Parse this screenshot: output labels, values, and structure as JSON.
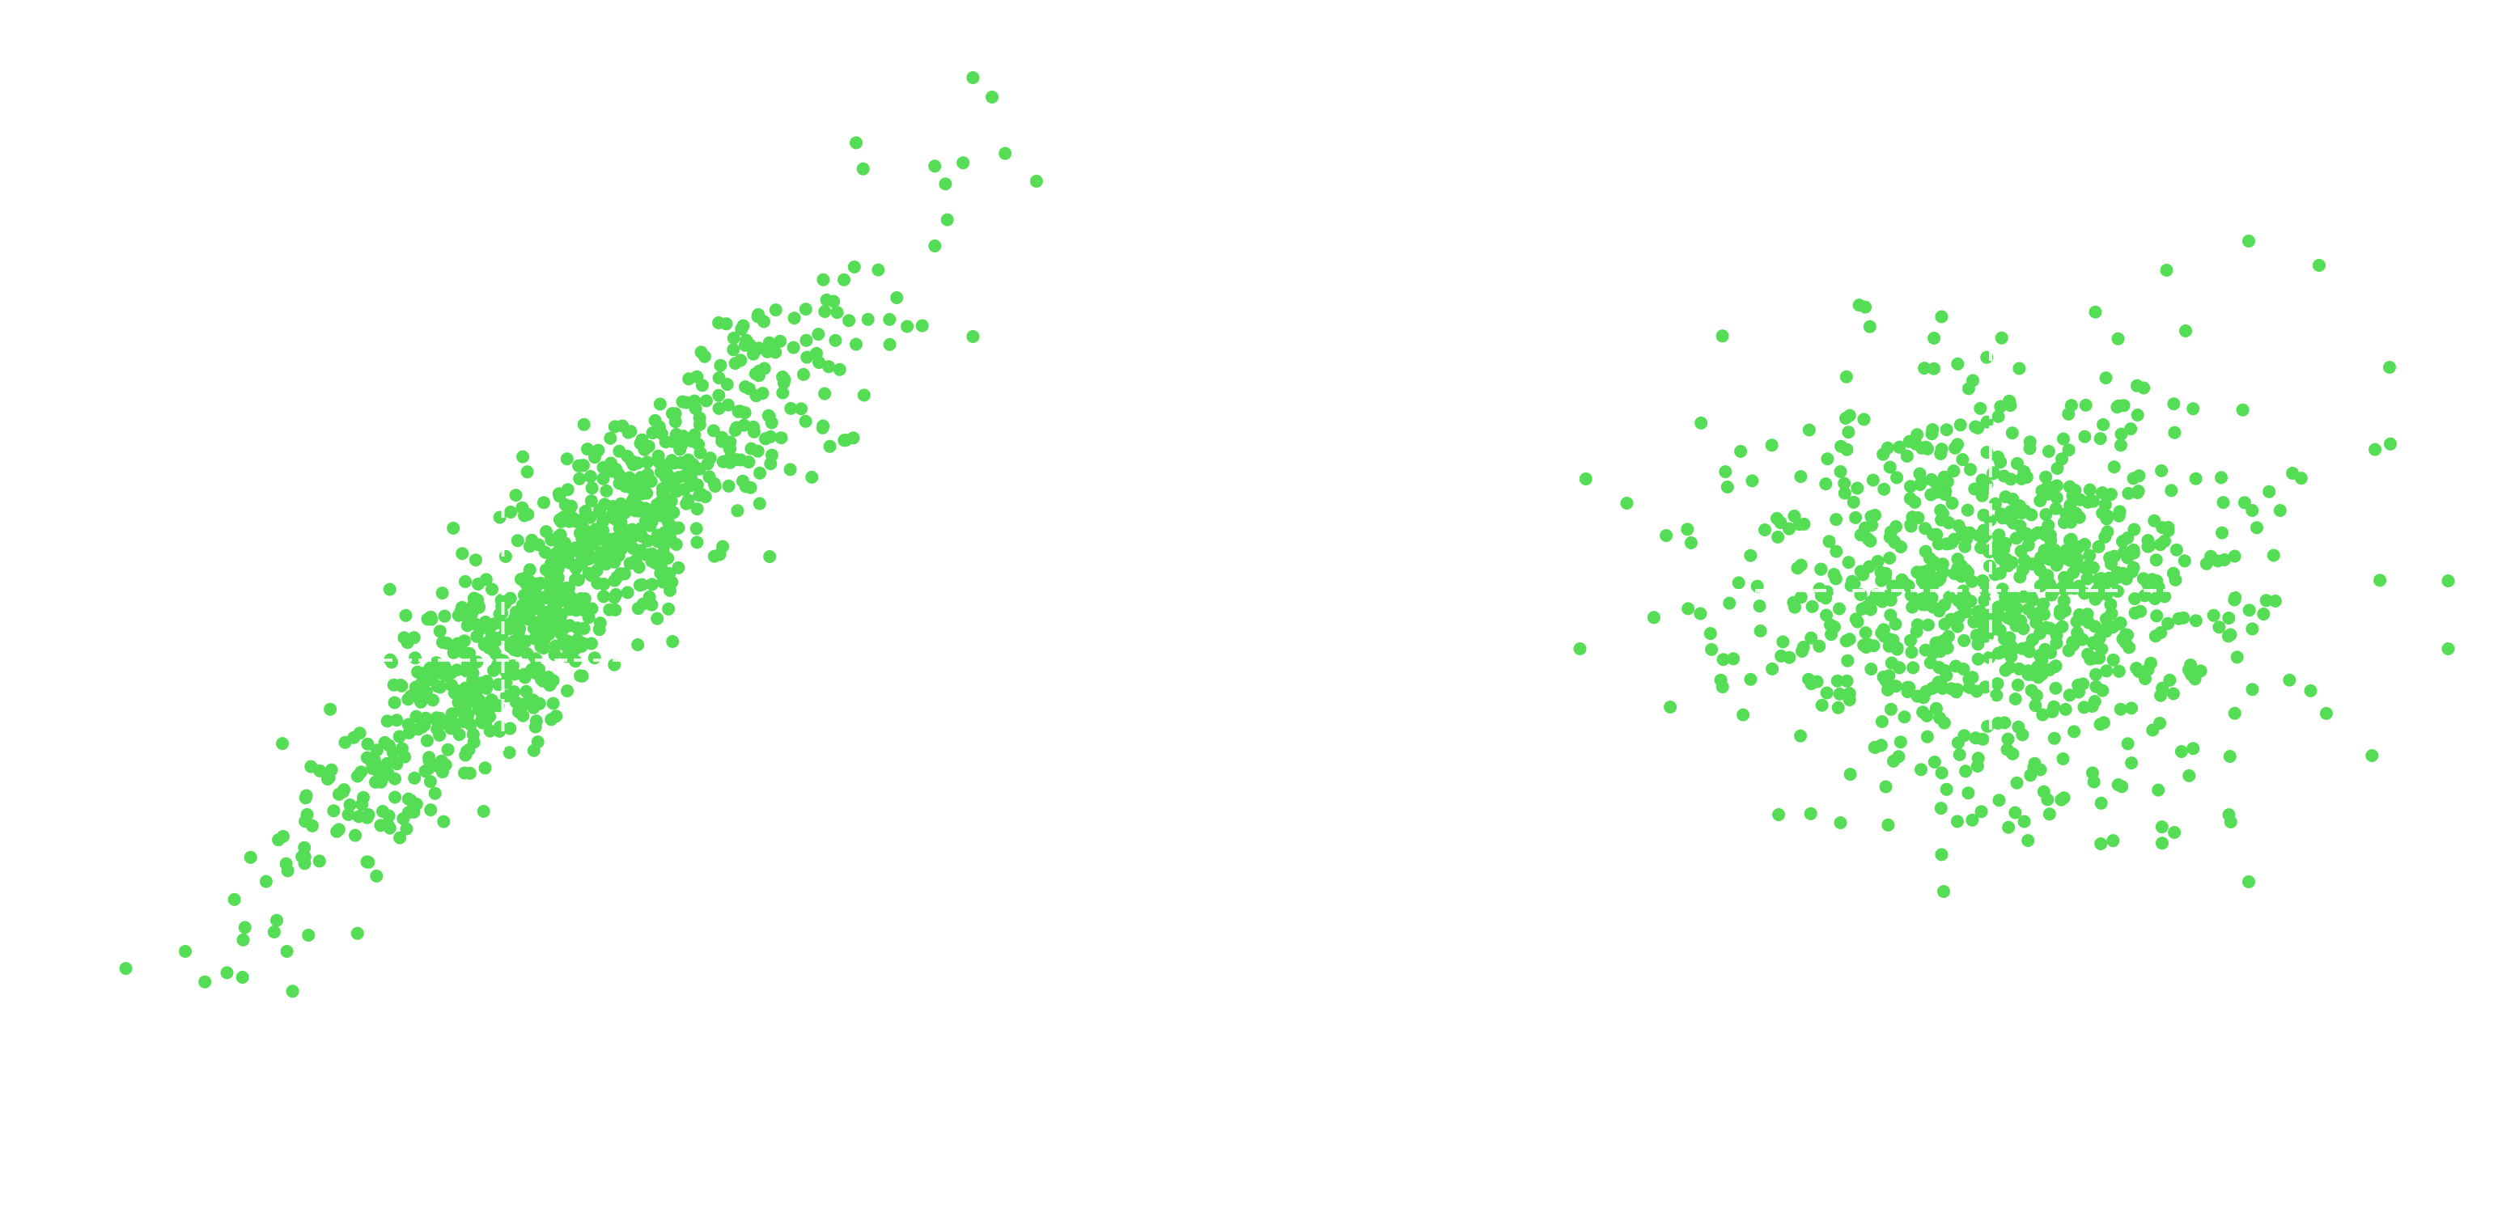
{
  "chart_data": [
    {
      "type": "scatter",
      "panel": "left",
      "title": "",
      "xlabel": "",
      "ylabel": "",
      "axes_visible": false,
      "grid": false,
      "xlim": [
        -4,
        4
      ],
      "ylim": [
        -4,
        4
      ],
      "n_points": 900,
      "generator": {
        "mean": [
          0,
          0
        ],
        "cov": [
          [
            1.0,
            0.9
          ],
          [
            0.9,
            1.0
          ]
        ],
        "seed": 11
      },
      "anchor_points": [
        [
          3.2,
          3.9
        ],
        [
          3.35,
          3.75
        ],
        [
          3.7,
          3.1
        ],
        [
          2.9,
          2.6
        ],
        [
          -3.0,
          -2.85
        ],
        [
          -2.55,
          -3.05
        ],
        [
          -2.2,
          -2.85
        ],
        [
          -2.3,
          -2.7
        ],
        [
          2.6,
          2.2
        ],
        [
          3.2,
          1.9
        ],
        [
          2.2,
          1.1
        ],
        [
          1.6,
          0.2
        ]
      ],
      "guide_lines": {
        "x": -0.5,
        "y": -0.6
      },
      "marker_color": "#55dd55",
      "series": [
        {
          "name": ""
        }
      ]
    },
    {
      "type": "scatter",
      "panel": "right",
      "title": "",
      "xlabel": "",
      "ylabel": "",
      "axes_visible": false,
      "grid": false,
      "xlim": [
        -4,
        4
      ],
      "ylim": [
        -4,
        4
      ],
      "n_points": 900,
      "generator": {
        "mean": [
          0,
          0
        ],
        "cov": [
          [
            1.0,
            0.0
          ],
          [
            0.0,
            1.0
          ]
        ],
        "seed": 23
      },
      "anchor_points": [
        [
          3.9,
          0.1
        ],
        [
          3.9,
          -0.6
        ],
        [
          3.4,
          2.3
        ],
        [
          -3.45,
          1.15
        ],
        [
          -3.5,
          -0.6
        ],
        [
          2.2,
          3.6
        ],
        [
          2.8,
          3.35
        ],
        [
          1.5,
          3.3
        ],
        [
          -0.4,
          -3.1
        ],
        [
          2.2,
          -3.0
        ],
        [
          -3.1,
          0.9
        ],
        [
          3.25,
          -1.7
        ]
      ],
      "guide_lines": {
        "x": 0.0,
        "y": 0.0
      },
      "marker_color": "#55dd55",
      "series": [
        {
          "name": ""
        }
      ]
    }
  ]
}
